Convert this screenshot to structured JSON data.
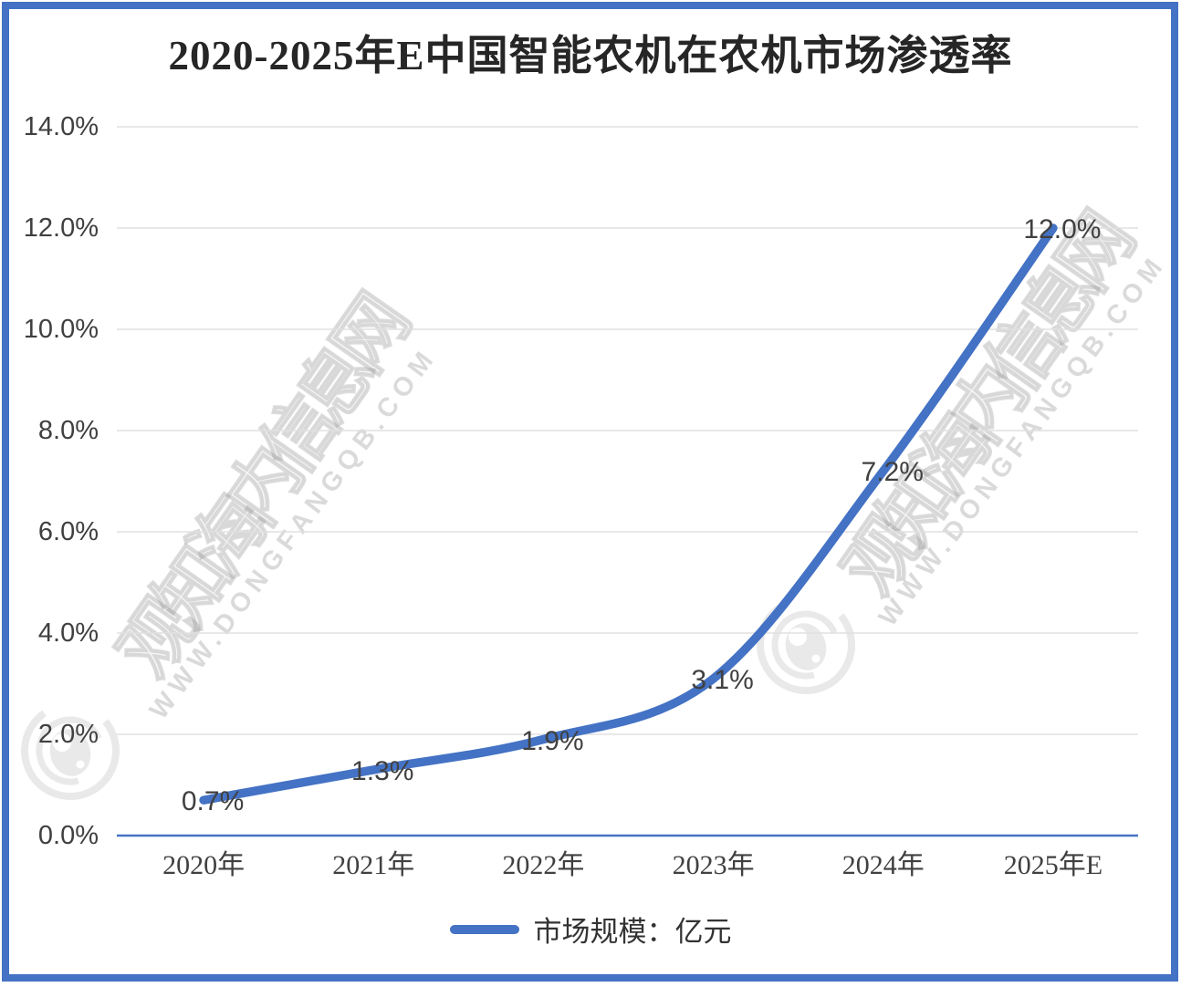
{
  "title": "2020-2025年E中国智能农机在农机市场渗透率",
  "legend": {
    "label": "市场规模：亿元"
  },
  "watermark": {
    "site_name": "观知海内信息网",
    "site_url": "WWW.DONGFANGQB.COM"
  },
  "colors": {
    "line": "#4472C4",
    "frame": "#4472C4",
    "axis": "#4472C4",
    "gridline": "#E0E0E0",
    "label_text": "#404040",
    "title_text": "#262626",
    "watermark": "#DCDCDC"
  },
  "chart_data": {
    "type": "line",
    "smooth": true,
    "title": "2020-2025年E中国智能农机在农机市场渗透率",
    "categories": [
      "2020年",
      "2021年",
      "2022年",
      "2023年",
      "2024年",
      "2025年E"
    ],
    "series": [
      {
        "name": "市场规模：亿元",
        "values": [
          0.7,
          1.3,
          1.9,
          3.1,
          7.2,
          12.0
        ]
      }
    ],
    "data_labels": [
      "0.7%",
      "1.3%",
      "1.9%",
      "3.1%",
      "7.2%",
      "12.0%"
    ],
    "y_ticks": [
      "0.0%",
      "2.0%",
      "4.0%",
      "6.0%",
      "8.0%",
      "10.0%",
      "12.0%",
      "14.0%"
    ],
    "ylim": [
      0,
      14
    ],
    "y_tick_step": 2,
    "xlabel": "",
    "ylabel": "",
    "grid": true,
    "legend_position": "bottom"
  }
}
